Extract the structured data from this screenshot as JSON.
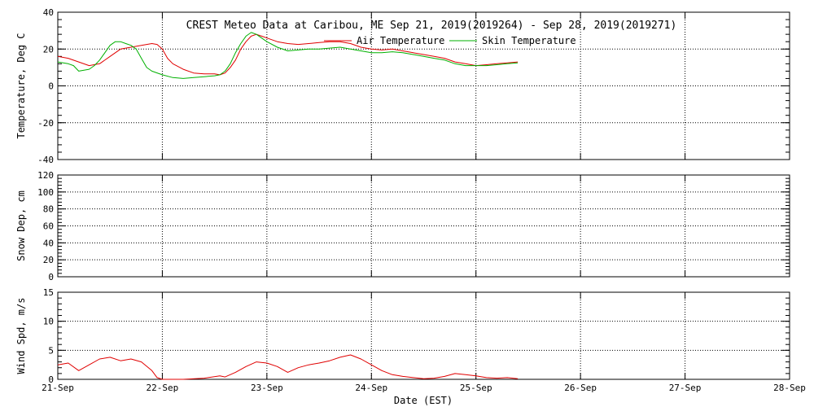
{
  "title": "CREST Meteo Data at Caribou, ME   Sep 21, 2019(2019264) - Sep 28, 2019(2019271)",
  "xlabel": "Date (EST)",
  "x_ticks": [
    "21-Sep",
    "22-Sep",
    "23-Sep",
    "24-Sep",
    "25-Sep",
    "26-Sep",
    "27-Sep",
    "28-Sep"
  ],
  "colors": {
    "air": "#e00000",
    "skin": "#00b000",
    "wind": "#e00000",
    "axes": "#000000"
  },
  "chart_data": [
    {
      "type": "line",
      "ylabel": "Temperature, Deg C",
      "xlim": [
        0,
        7
      ],
      "ylim": [
        -40,
        40
      ],
      "yticks": [
        -40,
        -20,
        0,
        20,
        40
      ],
      "grid": true,
      "legend": "top-center",
      "series": [
        {
          "name": "Air Temperature",
          "color": "#e00000",
          "points": [
            [
              0,
              16
            ],
            [
              0.1,
              15
            ],
            [
              0.2,
              13
            ],
            [
              0.3,
              11
            ],
            [
              0.4,
              12
            ],
            [
              0.5,
              16
            ],
            [
              0.6,
              20
            ],
            [
              0.7,
              21
            ],
            [
              0.8,
              22
            ],
            [
              0.9,
              23
            ],
            [
              0.95,
              22.5
            ],
            [
              1.0,
              20
            ],
            [
              1.05,
              15
            ],
            [
              1.1,
              12
            ],
            [
              1.2,
              9
            ],
            [
              1.3,
              7
            ],
            [
              1.4,
              6.5
            ],
            [
              1.5,
              6.5
            ],
            [
              1.55,
              6
            ],
            [
              1.6,
              7
            ],
            [
              1.65,
              10
            ],
            [
              1.7,
              14
            ],
            [
              1.75,
              20
            ],
            [
              1.8,
              24
            ],
            [
              1.85,
              27
            ],
            [
              1.9,
              28
            ],
            [
              1.95,
              27
            ],
            [
              2.0,
              26
            ],
            [
              2.1,
              24
            ],
            [
              2.2,
              23
            ],
            [
              2.3,
              22.5
            ],
            [
              2.4,
              23
            ],
            [
              2.5,
              23.5
            ],
            [
              2.6,
              24
            ],
            [
              2.7,
              24
            ],
            [
              2.8,
              23
            ],
            [
              2.9,
              21
            ],
            [
              3.0,
              20
            ],
            [
              3.1,
              19.5
            ],
            [
              3.2,
              20
            ],
            [
              3.3,
              19
            ],
            [
              3.4,
              18
            ],
            [
              3.5,
              17
            ],
            [
              3.6,
              16
            ],
            [
              3.7,
              15
            ],
            [
              3.8,
              13
            ],
            [
              3.9,
              12
            ],
            [
              4.0,
              11
            ],
            [
              4.1,
              11.5
            ],
            [
              4.2,
              12
            ],
            [
              4.3,
              12.5
            ],
            [
              4.4,
              13
            ]
          ]
        },
        {
          "name": "Skin Temperature",
          "color": "#00b000",
          "points": [
            [
              0,
              13
            ],
            [
              0.1,
              12
            ],
            [
              0.15,
              11
            ],
            [
              0.2,
              8
            ],
            [
              0.25,
              8.5
            ],
            [
              0.3,
              9
            ],
            [
              0.35,
              11
            ],
            [
              0.4,
              14
            ],
            [
              0.45,
              18
            ],
            [
              0.5,
              22
            ],
            [
              0.55,
              24
            ],
            [
              0.6,
              24
            ],
            [
              0.65,
              23
            ],
            [
              0.7,
              22
            ],
            [
              0.75,
              20
            ],
            [
              0.8,
              15
            ],
            [
              0.85,
              10
            ],
            [
              0.9,
              8
            ],
            [
              1.0,
              6
            ],
            [
              1.1,
              4.5
            ],
            [
              1.2,
              4
            ],
            [
              1.3,
              4.5
            ],
            [
              1.4,
              5
            ],
            [
              1.5,
              5.5
            ],
            [
              1.55,
              6
            ],
            [
              1.6,
              8
            ],
            [
              1.65,
              12
            ],
            [
              1.7,
              18
            ],
            [
              1.75,
              23
            ],
            [
              1.8,
              27
            ],
            [
              1.85,
              29
            ],
            [
              1.9,
              28
            ],
            [
              1.95,
              26
            ],
            [
              2.0,
              24
            ],
            [
              2.1,
              21
            ],
            [
              2.2,
              19
            ],
            [
              2.3,
              19.5
            ],
            [
              2.4,
              20
            ],
            [
              2.5,
              20
            ],
            [
              2.6,
              20.5
            ],
            [
              2.7,
              21
            ],
            [
              2.8,
              20
            ],
            [
              2.9,
              19
            ],
            [
              3.0,
              18
            ],
            [
              3.1,
              18
            ],
            [
              3.2,
              18.5
            ],
            [
              3.3,
              18
            ],
            [
              3.4,
              17
            ],
            [
              3.5,
              16
            ],
            [
              3.6,
              15
            ],
            [
              3.7,
              14
            ],
            [
              3.8,
              12
            ],
            [
              3.9,
              11
            ],
            [
              4.0,
              11
            ],
            [
              4.1,
              11
            ],
            [
              4.2,
              11.5
            ],
            [
              4.3,
              12
            ],
            [
              4.4,
              12.5
            ]
          ]
        }
      ]
    },
    {
      "type": "line",
      "ylabel": "Snow Dep, cm",
      "xlim": [
        0,
        7
      ],
      "ylim": [
        0,
        120
      ],
      "yticks": [
        0,
        20,
        40,
        60,
        80,
        100,
        120
      ],
      "grid": true,
      "series": []
    },
    {
      "type": "line",
      "ylabel": "Wind Spd, m/s",
      "xlim": [
        0,
        7
      ],
      "ylim": [
        0,
        15
      ],
      "yticks": [
        0,
        5,
        10,
        15
      ],
      "grid": true,
      "series": [
        {
          "color": "#e00000",
          "points": [
            [
              0,
              2.5
            ],
            [
              0.1,
              2.8
            ],
            [
              0.2,
              1.5
            ],
            [
              0.3,
              2.5
            ],
            [
              0.4,
              3.5
            ],
            [
              0.5,
              3.8
            ],
            [
              0.6,
              3.2
            ],
            [
              0.7,
              3.5
            ],
            [
              0.8,
              3.0
            ],
            [
              0.9,
              1.5
            ],
            [
              0.95,
              0.3
            ],
            [
              1.0,
              0
            ],
            [
              1.2,
              0
            ],
            [
              1.4,
              0.2
            ],
            [
              1.55,
              0.6
            ],
            [
              1.6,
              0.4
            ],
            [
              1.7,
              1.2
            ],
            [
              1.8,
              2.2
            ],
            [
              1.9,
              3.0
            ],
            [
              2.0,
              2.8
            ],
            [
              2.1,
              2.2
            ],
            [
              2.2,
              1.2
            ],
            [
              2.3,
              2.0
            ],
            [
              2.4,
              2.5
            ],
            [
              2.5,
              2.8
            ],
            [
              2.6,
              3.2
            ],
            [
              2.7,
              3.8
            ],
            [
              2.8,
              4.2
            ],
            [
              2.9,
              3.5
            ],
            [
              3.0,
              2.5
            ],
            [
              3.1,
              1.5
            ],
            [
              3.2,
              0.8
            ],
            [
              3.3,
              0.5
            ],
            [
              3.4,
              0.3
            ],
            [
              3.5,
              0.1
            ],
            [
              3.6,
              0.2
            ],
            [
              3.7,
              0.5
            ],
            [
              3.8,
              1.0
            ],
            [
              3.9,
              0.8
            ],
            [
              4.0,
              0.6
            ],
            [
              4.1,
              0.3
            ],
            [
              4.2,
              0.2
            ],
            [
              4.3,
              0.3
            ],
            [
              4.4,
              0.1
            ]
          ]
        }
      ]
    }
  ]
}
